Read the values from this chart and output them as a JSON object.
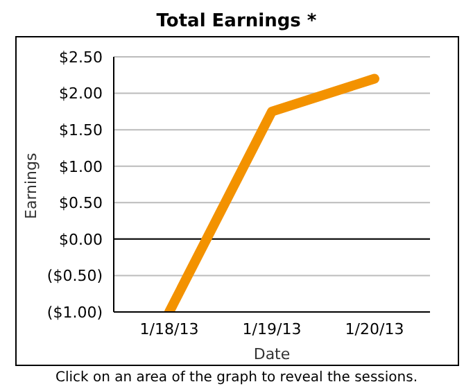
{
  "chart_data": {
    "type": "line",
    "title": "Total Earnings *",
    "xlabel": "Date",
    "ylabel": "Earnings",
    "categories": [
      "1/18/13",
      "1/19/13",
      "1/20/13"
    ],
    "series": [
      {
        "color": "#f39200",
        "values": [
          -1.0,
          1.75,
          2.2
        ]
      }
    ],
    "ylim": [
      -1.0,
      2.5
    ],
    "yticks": [
      {
        "value": -1.0,
        "label": "($1.00)"
      },
      {
        "value": -0.5,
        "label": "($0.50)"
      },
      {
        "value": 0,
        "label": "$0.00"
      },
      {
        "value": 0.5,
        "label": "$0.50"
      },
      {
        "value": 1.0,
        "label": "$1.00"
      },
      {
        "value": 1.5,
        "label": "$1.50"
      },
      {
        "value": 2.0,
        "label": "$2.00"
      },
      {
        "value": 2.5,
        "label": "$2.50"
      }
    ],
    "ref_lines": [
      {
        "axis": "y",
        "value": 0,
        "color": "#000000"
      }
    ],
    "grid": "y",
    "legend": false,
    "marker": "none",
    "line_style": "solid",
    "annotations": [
      "Click on an area of the graph to reveal the sessions."
    ]
  }
}
